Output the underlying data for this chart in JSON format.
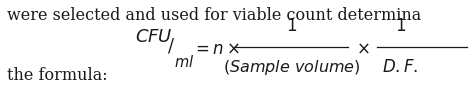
{
  "top_text": "were selected and used for viable count determina",
  "bottom_left_text": "the formula:",
  "bg_color": "#ffffff",
  "text_color": "#1a1a1a",
  "font_size_body": 11.5,
  "fig_width": 4.74,
  "fig_height": 1.03,
  "dpi": 100
}
